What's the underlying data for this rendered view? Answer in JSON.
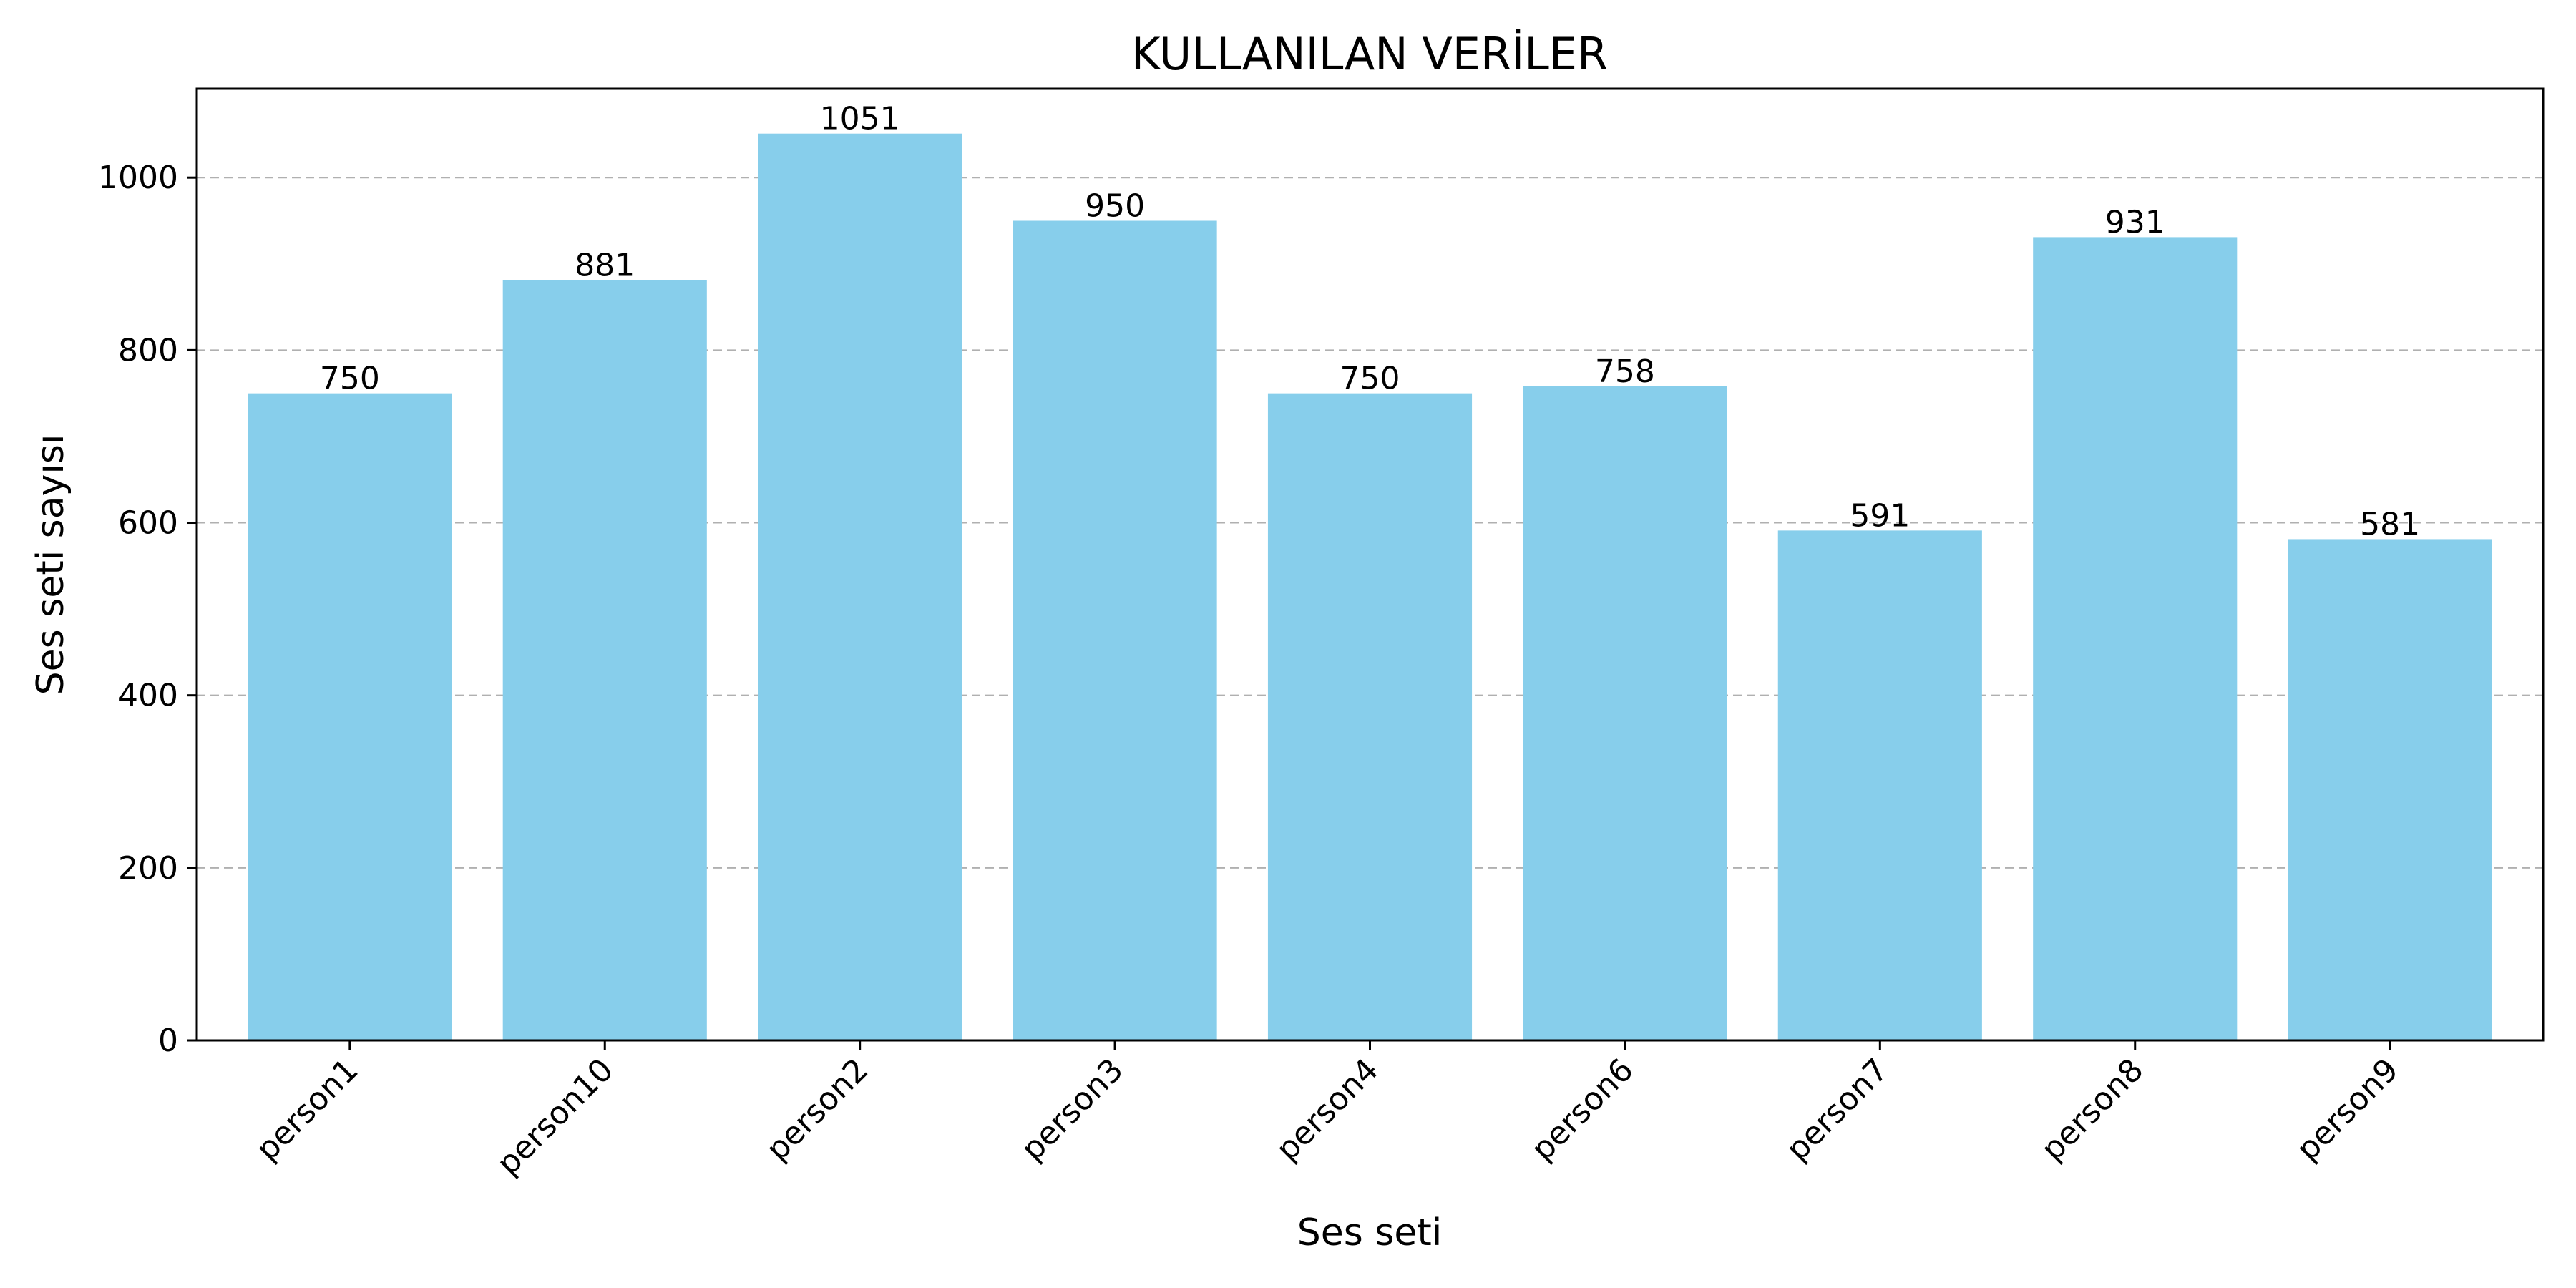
{
  "chart_data": {
    "type": "bar",
    "title": "KULLANILAN VERİLER",
    "xlabel": "Ses seti",
    "ylabel": "Ses seti sayısı",
    "categories": [
      "person1",
      "person10",
      "person2",
      "person3",
      "person4",
      "person6",
      "person7",
      "person8",
      "person9"
    ],
    "values": [
      750,
      881,
      1051,
      950,
      750,
      758,
      591,
      931,
      581
    ],
    "ylim": [
      0,
      1103
    ],
    "yticks": [
      0,
      200,
      400,
      600,
      800,
      1000
    ],
    "grid": "y-dashed",
    "legend": "none",
    "bar_color": "#87CEEB"
  }
}
